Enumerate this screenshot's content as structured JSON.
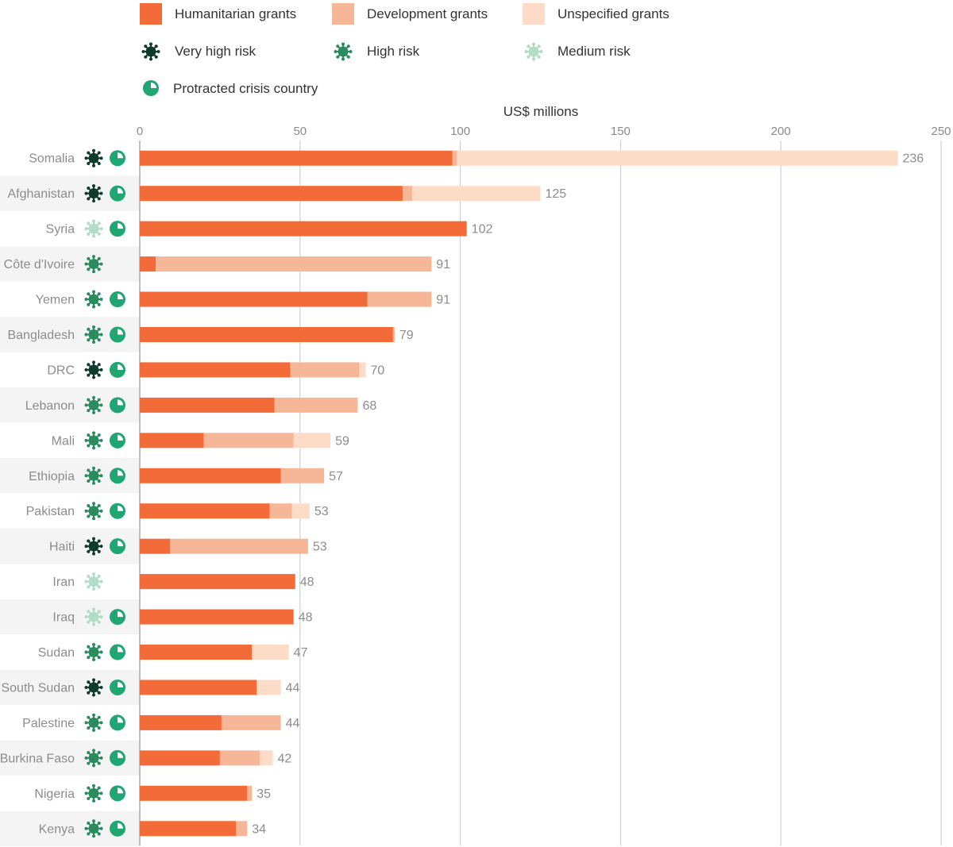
{
  "legend": {
    "segments": [
      {
        "label": "Humanitarian grants",
        "color": "#f26b38"
      },
      {
        "label": "Development grants",
        "color": "#f6b698"
      },
      {
        "label": "Unspecified grants",
        "color": "#fddcc7"
      }
    ],
    "risks": [
      {
        "label": "Very high risk",
        "color": "#0e3b2a",
        "icon": "virus-icon"
      },
      {
        "label": "High risk",
        "color": "#2b8a5e",
        "icon": "virus-icon"
      },
      {
        "label": "Medium risk",
        "color": "#b3dcc6",
        "icon": "virus-icon"
      }
    ],
    "protracted": {
      "label": "Protracted crisis country",
      "color": "#1fa672",
      "icon": "pie-clock-icon"
    }
  },
  "chart_data": {
    "type": "bar",
    "orientation": "horizontal",
    "stacked": true,
    "xlabel": "US$ millions",
    "xlim": [
      0,
      250
    ],
    "xticks": [
      0,
      50,
      100,
      150,
      200,
      250
    ],
    "grid": true,
    "legend_position": "top",
    "categories": [
      "Somalia",
      "Afghanistan",
      "Syria",
      "Côte d'Ivoire",
      "Yemen",
      "Bangladesh",
      "DRC",
      "Lebanon",
      "Mali",
      "Ethiopia",
      "Pakistan",
      "Haiti",
      "Iran",
      "Iraq",
      "Sudan",
      "South Sudan",
      "Palestine",
      "Burkina Faso",
      "Nigeria",
      "Kenya"
    ],
    "series": [
      {
        "name": "Humanitarian grants",
        "color": "#f26b38",
        "values": [
          97.5,
          82,
          102,
          5,
          71,
          79,
          47,
          42,
          20,
          44,
          40.5,
          9.5,
          48.5,
          48,
          35,
          36.5,
          25.5,
          25,
          33.5,
          30
        ]
      },
      {
        "name": "Development grants",
        "color": "#f6b698",
        "values": [
          1.5,
          3,
          0,
          86,
          20,
          0.5,
          21.5,
          26,
          28,
          13.5,
          7,
          43,
          0,
          0,
          0,
          0,
          18.5,
          12.5,
          1.5,
          3.5
        ]
      },
      {
        "name": "Unspecified grants",
        "color": "#fddcc7",
        "values": [
          137.5,
          40,
          0,
          0,
          0,
          0,
          2,
          0,
          11.5,
          0,
          5.5,
          0,
          0,
          0,
          11.5,
          7.5,
          0,
          4,
          0,
          0
        ]
      }
    ],
    "totals": [
      "236",
      "125",
      "102",
      "91",
      "91",
      "79",
      "70",
      "68",
      "59",
      "57",
      "53",
      "53",
      "48",
      "48",
      "47",
      "44",
      "44",
      "42",
      "35",
      "34"
    ],
    "risk": [
      "very-high",
      "very-high",
      "medium",
      "high",
      "high",
      "high",
      "very-high",
      "high",
      "high",
      "high",
      "high",
      "very-high",
      "medium",
      "medium",
      "high",
      "very-high",
      "high",
      "high",
      "high",
      "high"
    ],
    "protracted": [
      true,
      true,
      true,
      false,
      true,
      true,
      true,
      true,
      true,
      true,
      true,
      true,
      false,
      true,
      true,
      true,
      true,
      true,
      true,
      true
    ],
    "risk_colors": {
      "very-high": "#0e3b2a",
      "high": "#2b8a5e",
      "medium": "#b3dcc6"
    },
    "protracted_color": "#1fa672",
    "row_stripe_color": "#f4f4f4",
    "grid_color": "#c8c8c8"
  }
}
